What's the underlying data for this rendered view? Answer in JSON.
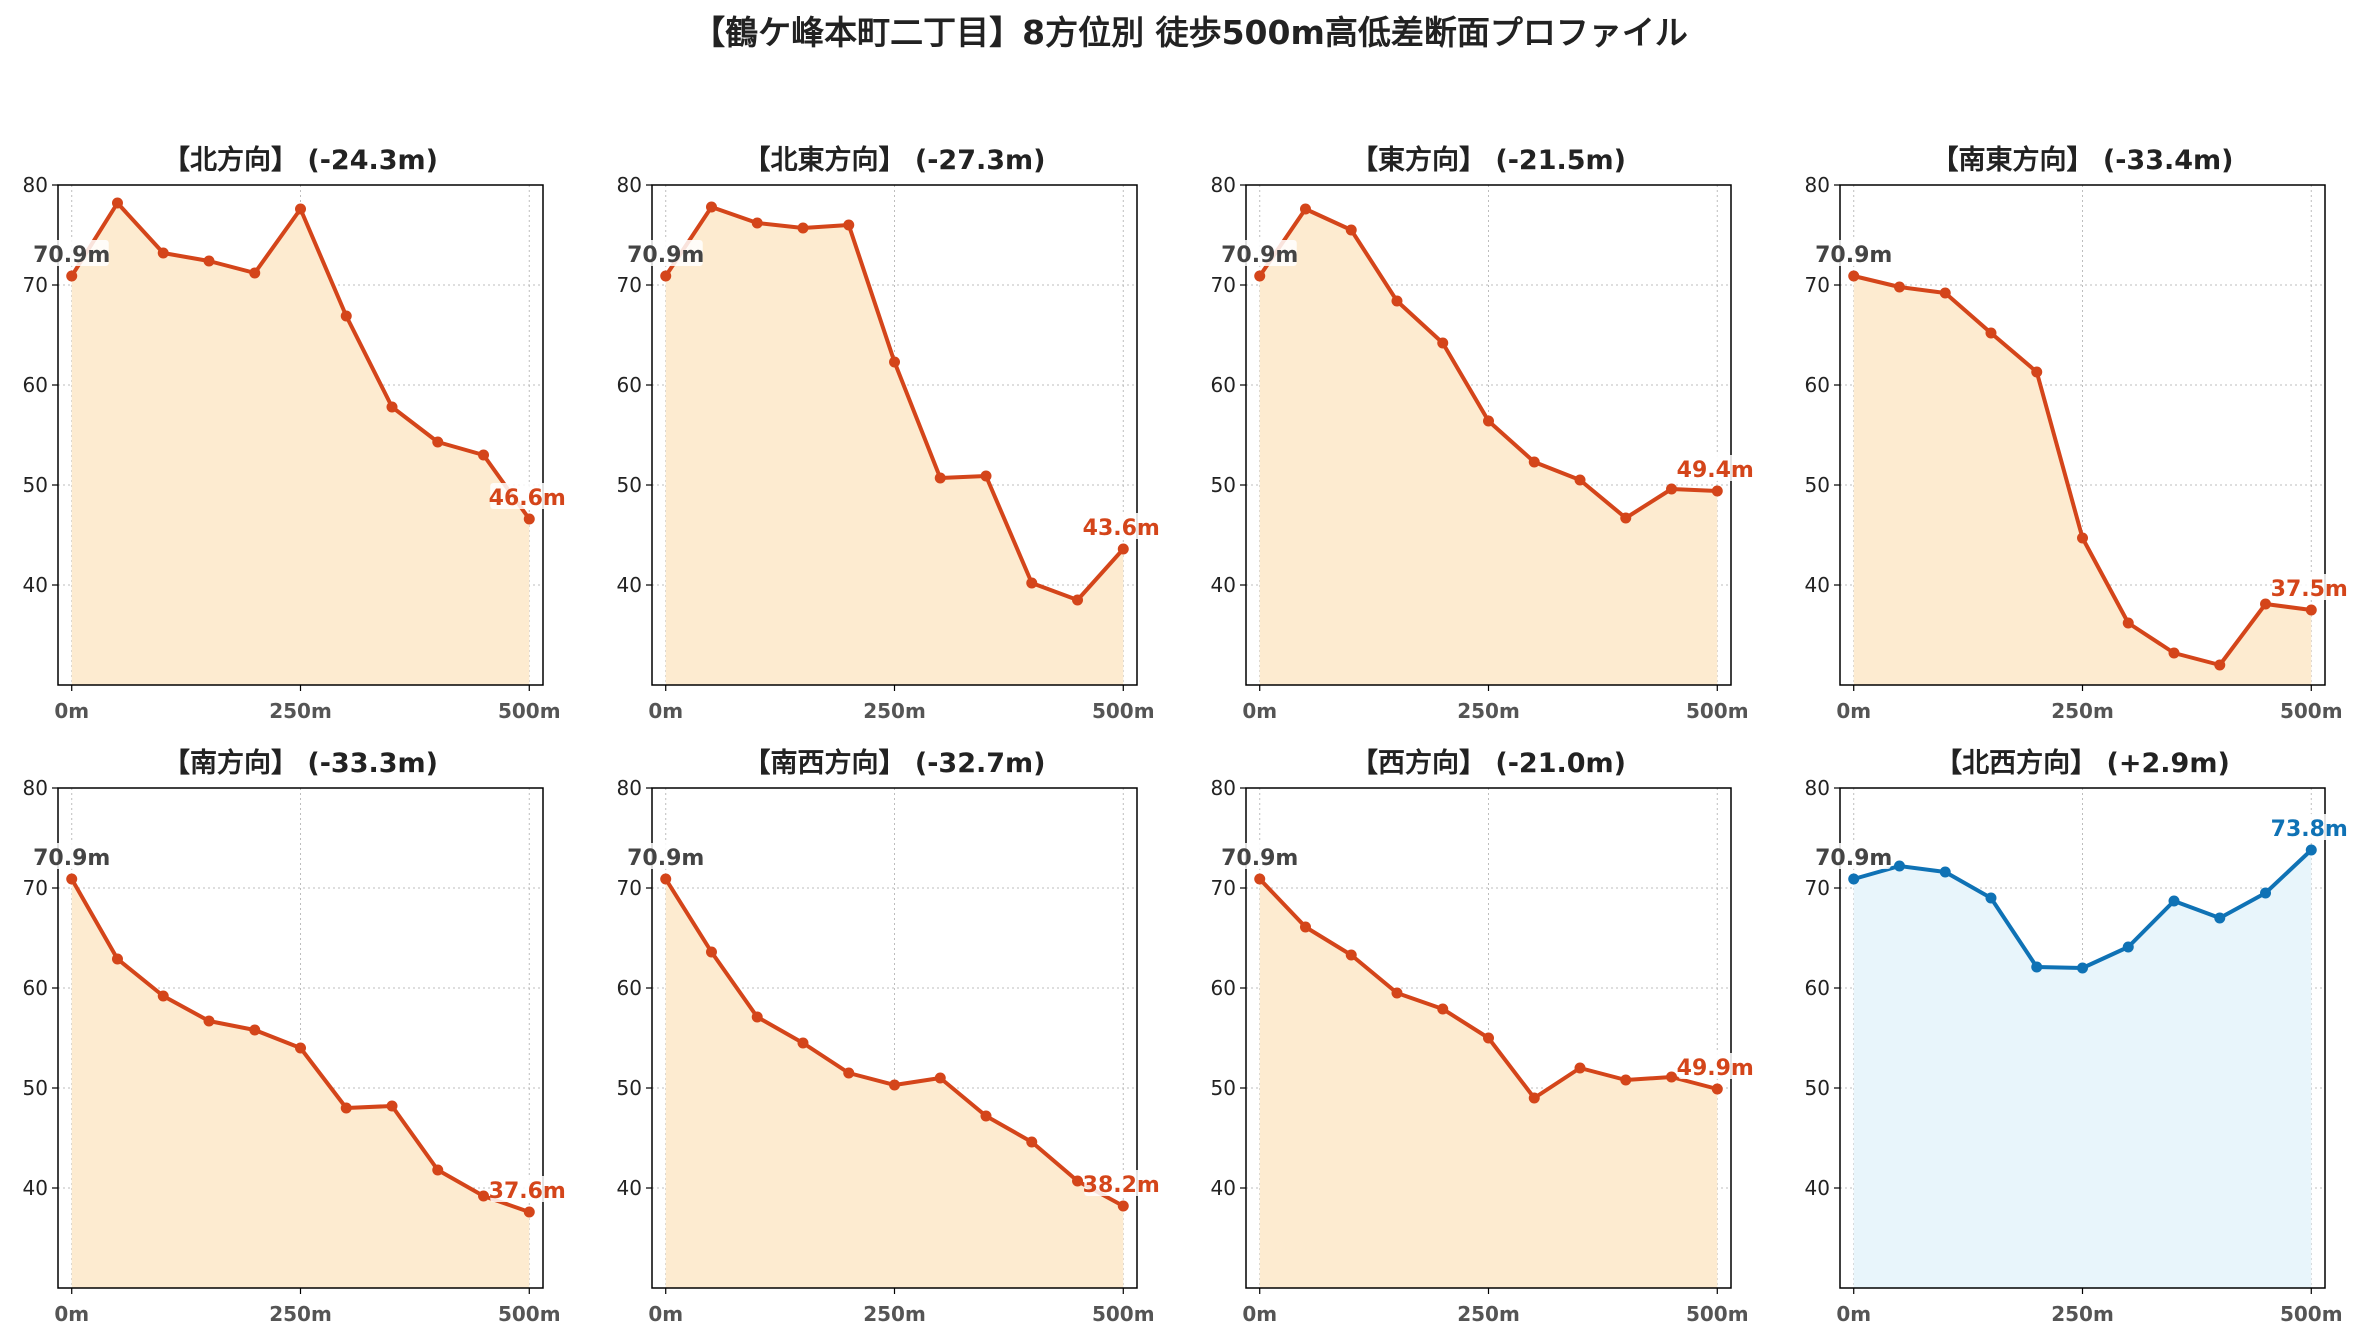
{
  "figure_title": "【鶴ケ峰本町二丁目】8方位別 徒歩500m高低差断面プロファイル",
  "colors": {
    "down_line": "#d4451a",
    "down_fill": "#fdebd0",
    "up_line": "#0f72b5",
    "up_fill": "#e8f5fb",
    "start_label": "#444444",
    "grid": "#bdbdbd"
  },
  "chart_data": [
    {
      "type": "area",
      "title": "【北方向】 (-24.3m)",
      "trend": "down",
      "x": [
        0,
        50,
        100,
        150,
        200,
        250,
        300,
        350,
        400,
        450,
        500
      ],
      "y": [
        70.9,
        78.2,
        73.2,
        72.4,
        71.2,
        77.6,
        66.9,
        57.8,
        54.3,
        53.0,
        46.6
      ],
      "start_label": "70.9m",
      "end_label": "46.6m",
      "xlim": [
        -15,
        515
      ],
      "ylim": [
        30,
        80
      ],
      "xticks": [
        0,
        250,
        500
      ],
      "xtick_labels": [
        "0m",
        "250m",
        "500m"
      ],
      "yticks": [
        40,
        50,
        60,
        70,
        80
      ],
      "ytick_labels": [
        "40",
        "50",
        "60",
        "70",
        "80"
      ],
      "grid": true
    },
    {
      "type": "area",
      "title": "【北東方向】 (-27.3m)",
      "trend": "down",
      "x": [
        0,
        50,
        100,
        150,
        200,
        250,
        300,
        350,
        400,
        450,
        500
      ],
      "y": [
        70.9,
        77.8,
        76.2,
        75.7,
        76.0,
        62.3,
        50.7,
        50.9,
        40.2,
        38.5,
        43.6
      ],
      "start_label": "70.9m",
      "end_label": "43.6m",
      "xlim": [
        -15,
        515
      ],
      "ylim": [
        30,
        80
      ],
      "xticks": [
        0,
        250,
        500
      ],
      "xtick_labels": [
        "0m",
        "250m",
        "500m"
      ],
      "yticks": [
        40,
        50,
        60,
        70,
        80
      ],
      "ytick_labels": [
        "40",
        "50",
        "60",
        "70",
        "80"
      ],
      "grid": true
    },
    {
      "type": "area",
      "title": "【東方向】 (-21.5m)",
      "trend": "down",
      "x": [
        0,
        50,
        100,
        150,
        200,
        250,
        300,
        350,
        400,
        450,
        500
      ],
      "y": [
        70.9,
        77.6,
        75.5,
        68.4,
        64.2,
        56.4,
        52.3,
        50.5,
        46.7,
        49.6,
        49.4
      ],
      "start_label": "70.9m",
      "end_label": "49.4m",
      "xlim": [
        -15,
        515
      ],
      "ylim": [
        30,
        80
      ],
      "xticks": [
        0,
        250,
        500
      ],
      "xtick_labels": [
        "0m",
        "250m",
        "500m"
      ],
      "yticks": [
        40,
        50,
        60,
        70,
        80
      ],
      "ytick_labels": [
        "40",
        "50",
        "60",
        "70",
        "80"
      ],
      "grid": true
    },
    {
      "type": "area",
      "title": "【南東方向】 (-33.4m)",
      "trend": "down",
      "x": [
        0,
        50,
        100,
        150,
        200,
        250,
        300,
        350,
        400,
        450,
        500
      ],
      "y": [
        70.9,
        69.8,
        69.2,
        65.2,
        61.3,
        44.7,
        36.2,
        33.2,
        32.0,
        38.1,
        37.5
      ],
      "start_label": "70.9m",
      "end_label": "37.5m",
      "xlim": [
        -15,
        515
      ],
      "ylim": [
        30,
        80
      ],
      "xticks": [
        0,
        250,
        500
      ],
      "xtick_labels": [
        "0m",
        "250m",
        "500m"
      ],
      "yticks": [
        40,
        50,
        60,
        70,
        80
      ],
      "ytick_labels": [
        "40",
        "50",
        "60",
        "70",
        "80"
      ],
      "grid": true
    },
    {
      "type": "area",
      "title": "【南方向】 (-33.3m)",
      "trend": "down",
      "x": [
        0,
        50,
        100,
        150,
        200,
        250,
        300,
        350,
        400,
        450,
        500
      ],
      "y": [
        70.9,
        62.9,
        59.2,
        56.7,
        55.8,
        54.0,
        48.0,
        48.2,
        41.8,
        39.2,
        37.6
      ],
      "start_label": "70.9m",
      "end_label": "37.6m",
      "xlim": [
        -15,
        515
      ],
      "ylim": [
        30,
        80
      ],
      "xticks": [
        0,
        250,
        500
      ],
      "xtick_labels": [
        "0m",
        "250m",
        "500m"
      ],
      "yticks": [
        40,
        50,
        60,
        70,
        80
      ],
      "ytick_labels": [
        "40",
        "50",
        "60",
        "70",
        "80"
      ],
      "grid": true
    },
    {
      "type": "area",
      "title": "【南西方向】 (-32.7m)",
      "trend": "down",
      "x": [
        0,
        50,
        100,
        150,
        200,
        250,
        300,
        350,
        400,
        450,
        500
      ],
      "y": [
        70.9,
        63.6,
        57.1,
        54.5,
        51.5,
        50.3,
        51.0,
        47.2,
        44.6,
        40.7,
        38.2
      ],
      "start_label": "70.9m",
      "end_label": "38.2m",
      "xlim": [
        -15,
        515
      ],
      "ylim": [
        30,
        80
      ],
      "xticks": [
        0,
        250,
        500
      ],
      "xtick_labels": [
        "0m",
        "250m",
        "500m"
      ],
      "yticks": [
        40,
        50,
        60,
        70,
        80
      ],
      "ytick_labels": [
        "40",
        "50",
        "60",
        "70",
        "80"
      ],
      "grid": true
    },
    {
      "type": "area",
      "title": "【西方向】 (-21.0m)",
      "trend": "down",
      "x": [
        0,
        50,
        100,
        150,
        200,
        250,
        300,
        350,
        400,
        450,
        500
      ],
      "y": [
        70.9,
        66.1,
        63.3,
        59.5,
        57.9,
        55.0,
        49.0,
        52.0,
        50.8,
        51.1,
        49.9
      ],
      "start_label": "70.9m",
      "end_label": "49.9m",
      "xlim": [
        -15,
        515
      ],
      "ylim": [
        30,
        80
      ],
      "xticks": [
        0,
        250,
        500
      ],
      "xtick_labels": [
        "0m",
        "250m",
        "500m"
      ],
      "yticks": [
        40,
        50,
        60,
        70,
        80
      ],
      "ytick_labels": [
        "40",
        "50",
        "60",
        "70",
        "80"
      ],
      "grid": true
    },
    {
      "type": "area",
      "title": "【北西方向】 (+2.9m)",
      "trend": "up",
      "x": [
        0,
        50,
        100,
        150,
        200,
        250,
        300,
        350,
        400,
        450,
        500
      ],
      "y": [
        70.9,
        72.2,
        71.6,
        69.0,
        62.1,
        62.0,
        64.1,
        68.7,
        67.0,
        69.5,
        73.8
      ],
      "start_label": "70.9m",
      "end_label": "73.8m",
      "xlim": [
        -15,
        515
      ],
      "ylim": [
        30,
        80
      ],
      "xticks": [
        0,
        250,
        500
      ],
      "xtick_labels": [
        "0m",
        "250m",
        "500m"
      ],
      "yticks": [
        40,
        50,
        60,
        70,
        80
      ],
      "ytick_labels": [
        "40",
        "50",
        "60",
        "70",
        "80"
      ],
      "grid": true
    }
  ]
}
